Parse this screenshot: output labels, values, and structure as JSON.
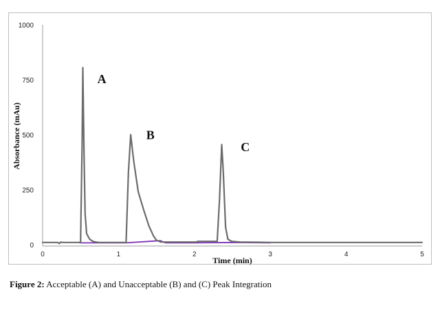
{
  "chart_data": {
    "type": "line",
    "title": "",
    "xlabel": "Time (min)",
    "ylabel": "Absorbance (mAu)",
    "xlim": [
      0,
      5
    ],
    "ylim": [
      0,
      1000
    ],
    "xticks": [
      0,
      1,
      2,
      3,
      4,
      5
    ],
    "yticks": [
      0,
      250,
      500,
      750,
      1000
    ],
    "grid": false,
    "legend": "none",
    "series": [
      {
        "color": "#6b6b6b",
        "x": [
          0,
          0.2,
          0.22,
          0.24,
          0.26,
          0.5,
          0.52,
          0.53,
          0.545,
          0.56,
          0.58,
          0.62,
          0.66,
          0.7,
          0.74,
          1.1,
          1.13,
          1.16,
          1.2,
          1.26,
          1.33,
          1.4,
          1.46,
          1.5,
          1.56,
          2.02,
          2.05,
          2.3,
          2.33,
          2.36,
          2.38,
          2.41,
          2.44,
          2.49,
          2.6,
          3.0,
          5.0
        ],
        "y": [
          10,
          10,
          5,
          12,
          10,
          10,
          450,
          805,
          420,
          140,
          50,
          25,
          15,
          12,
          10,
          10,
          330,
          500,
          380,
          240,
          160,
          85,
          40,
          20,
          12,
          12,
          15,
          15,
          200,
          455,
          330,
          80,
          25,
          15,
          12,
          10,
          10
        ]
      },
      {
        "color": "#7a2fb5",
        "x": [
          0.49,
          0.8,
          1.1,
          1.55,
          1.62,
          2.02,
          2.5,
          3.0
        ],
        "y": [
          8,
          8,
          8,
          18,
          8,
          8,
          10,
          8
        ]
      }
    ],
    "annotations": [
      {
        "text": "A",
        "x": 0.78,
        "y": 735
      },
      {
        "text": "B",
        "x": 1.42,
        "y": 480
      },
      {
        "text": "C",
        "x": 2.67,
        "y": 425
      }
    ]
  },
  "caption": {
    "lead": "Figure 2:",
    "text": " Acceptable (A) and Unacceptable (B) and (C) Peak Integration"
  }
}
